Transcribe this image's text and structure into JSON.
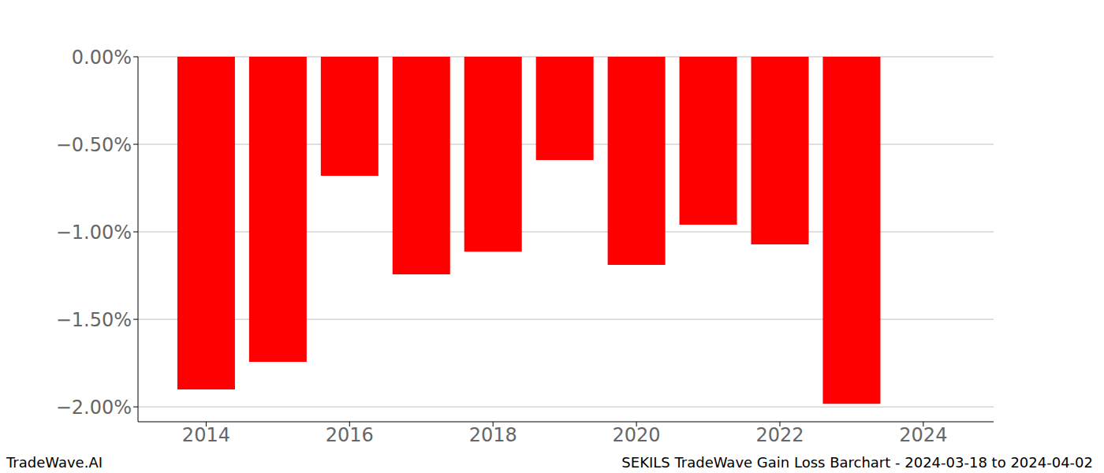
{
  "chart_data": {
    "type": "bar",
    "title": "SEKILS TradeWave Gain Loss Barchart - 2024-03-18 to 2024-04-02",
    "annotations": [
      "TradeWave.AI"
    ],
    "x": [
      2014,
      2015,
      2016,
      2017,
      2018,
      2019,
      2020,
      2021,
      2022,
      2023
    ],
    "values": [
      -1.9,
      -1.743,
      -0.68,
      -1.243,
      -1.113,
      -0.59,
      -1.189,
      -0.959,
      -1.072,
      -1.982
    ],
    "color": "#ff0000",
    "xlim": [
      2013.05,
      2024.98
    ],
    "xticks": [
      2014,
      2016,
      2018,
      2020,
      2022,
      2024
    ],
    "ylim": [
      -2.085,
      0
    ],
    "yticks": [
      {
        "value": 0,
        "label": "0.00%"
      },
      {
        "value": -0.5,
        "label": "−0.50%"
      },
      {
        "value": -1,
        "label": "−1.00%"
      },
      {
        "value": -1.5,
        "label": "−1.50%"
      },
      {
        "value": -2,
        "label": "−2.00%"
      }
    ],
    "grid": true
  }
}
